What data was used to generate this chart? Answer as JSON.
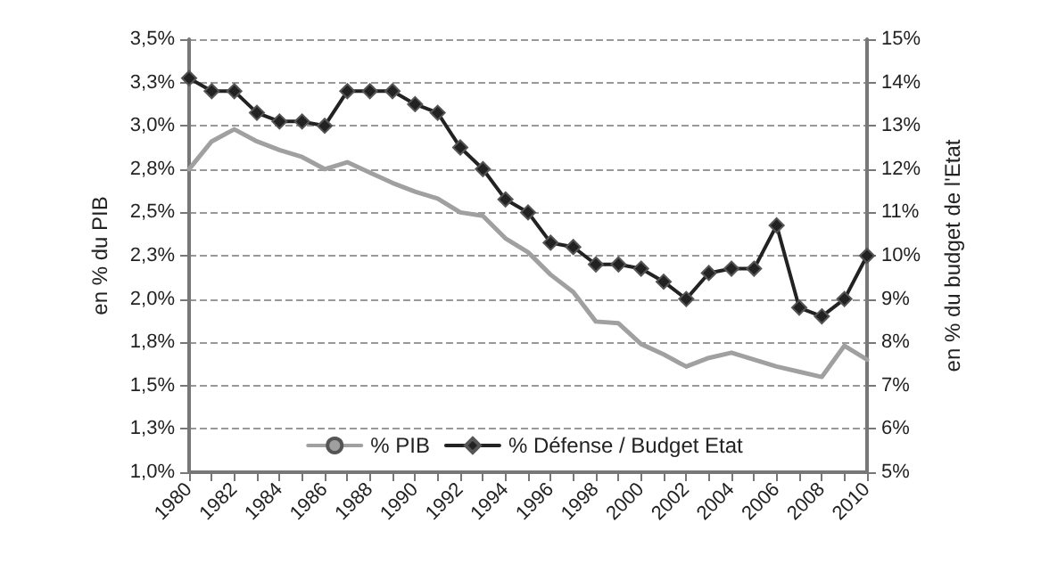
{
  "chart_data": {
    "type": "line",
    "ylabel": "en % du PIB",
    "y2label": "en % du budget de l'Etat",
    "categories": [
      "1980",
      null,
      "1982",
      null,
      "1984",
      null,
      "1986",
      null,
      "1988",
      null,
      "1990",
      null,
      "1992",
      null,
      "1994",
      null,
      "1996",
      null,
      "1998",
      null,
      "2000",
      null,
      "2002",
      null,
      "2004",
      null,
      "2006",
      null,
      "2008",
      null,
      "2010"
    ],
    "series": [
      {
        "name": "% PIB",
        "color": "#a0a0a0",
        "marker": "none",
        "values": [
          2.75,
          2.91,
          2.98,
          2.91,
          2.86,
          2.82,
          2.75,
          2.79,
          2.73,
          2.67,
          2.62,
          2.58,
          2.5,
          2.48,
          2.35,
          2.27,
          2.14,
          2.04,
          1.87,
          1.86,
          1.74,
          1.68,
          1.61,
          1.66,
          1.69,
          1.65,
          1.61,
          1.58,
          1.55,
          1.73,
          1.65
        ]
      },
      {
        "name": "% Défense / Budget Etat",
        "color": "#222222",
        "marker": "diamond",
        "axis": "y2",
        "values": [
          14.1,
          13.8,
          13.8,
          13.3,
          13.1,
          13.1,
          13.0,
          13.8,
          13.8,
          13.8,
          13.5,
          13.3,
          12.5,
          12.0,
          11.3,
          11.0,
          10.3,
          10.2,
          9.8,
          9.8,
          9.7,
          9.4,
          9.0,
          9.6,
          9.7,
          9.7,
          10.7,
          8.8,
          8.6,
          9.0,
          10.0
        ]
      }
    ],
    "ylim": [
      1.0,
      3.5
    ],
    "yticks": [
      {
        "value": 1.0,
        "label": "1,0%"
      },
      {
        "value": 1.25,
        "label": "1,3%"
      },
      {
        "value": 1.5,
        "label": "1,5%"
      },
      {
        "value": 1.75,
        "label": "1,8%"
      },
      {
        "value": 2.0,
        "label": "2,0%"
      },
      {
        "value": 2.25,
        "label": "2,3%"
      },
      {
        "value": 2.5,
        "label": "2,5%"
      },
      {
        "value": 2.75,
        "label": "2,8%"
      },
      {
        "value": 3.0,
        "label": "3,0%"
      },
      {
        "value": 3.25,
        "label": "3,3%"
      },
      {
        "value": 3.5,
        "label": "3,5%"
      }
    ],
    "y2lim": [
      5,
      15
    ],
    "y2ticks": [
      {
        "value": 5,
        "label": "5%"
      },
      {
        "value": 6,
        "label": "6%"
      },
      {
        "value": 7,
        "label": "7%"
      },
      {
        "value": 8,
        "label": "8%"
      },
      {
        "value": 9,
        "label": "9%"
      },
      {
        "value": 10,
        "label": "10%"
      },
      {
        "value": 11,
        "label": "11%"
      },
      {
        "value": 12,
        "label": "12%"
      },
      {
        "value": 13,
        "label": "13%"
      },
      {
        "value": 14,
        "label": "14%"
      },
      {
        "value": 15,
        "label": "15%"
      }
    ],
    "grid": "y",
    "legend": "bottom",
    "line_style": "solid"
  }
}
